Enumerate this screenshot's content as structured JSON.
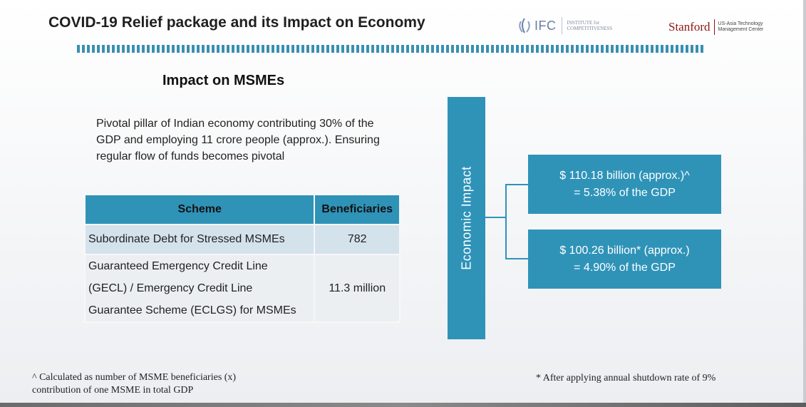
{
  "header": {
    "title": "COVID-19 Relief package and its Impact on Economy"
  },
  "logos": {
    "ifc": {
      "name": "IFC",
      "tagline_line1": "INSTITUTE for",
      "tagline_line2": "COMPETITIVENESS"
    },
    "stanford": {
      "name": "Stanford",
      "tagline_line1": "US-Asia Technology",
      "tagline_line2": "Management Center"
    }
  },
  "section": {
    "heading": "Impact on MSMEs",
    "intro": "Pivotal pillar of Indian economy contributing 30% of the GDP and employing 11 crore people (approx.). Ensuring regular flow of funds becomes pivotal"
  },
  "table": {
    "headers": {
      "scheme": "Scheme",
      "beneficiaries": "Beneficiaries"
    },
    "rows": [
      {
        "scheme": "Subordinate Debt for Stressed MSMEs",
        "beneficiaries": "782"
      },
      {
        "scheme_line1": "Guaranteed Emergency Credit Line",
        "scheme_line2": "(GECL) / Emergency Credit Line",
        "scheme_line3": "Guarantee Scheme (ECLGS) for MSMEs",
        "beneficiaries": "11.3 million"
      }
    ]
  },
  "economic_impact": {
    "label": "Economic Impact",
    "boxes": [
      {
        "line1": "$ 110.18 billion (approx.)^",
        "line2": "= 5.38% of the GDP"
      },
      {
        "line1": "$ 100.26 billion* (approx.)",
        "line2": "= 4.90% of the GDP"
      }
    ]
  },
  "footnotes": {
    "left_line1": "^ Calculated as number of MSME beneficiaries (x)",
    "left_line2": "contribution of one MSME in total GDP",
    "right": "* After applying annual shutdown rate of 9%"
  },
  "colors": {
    "accent": "#2f93b8",
    "stripe": "#3a8fb1",
    "row_light": "#d4e2ec",
    "stanford_red": "#8c1515"
  }
}
